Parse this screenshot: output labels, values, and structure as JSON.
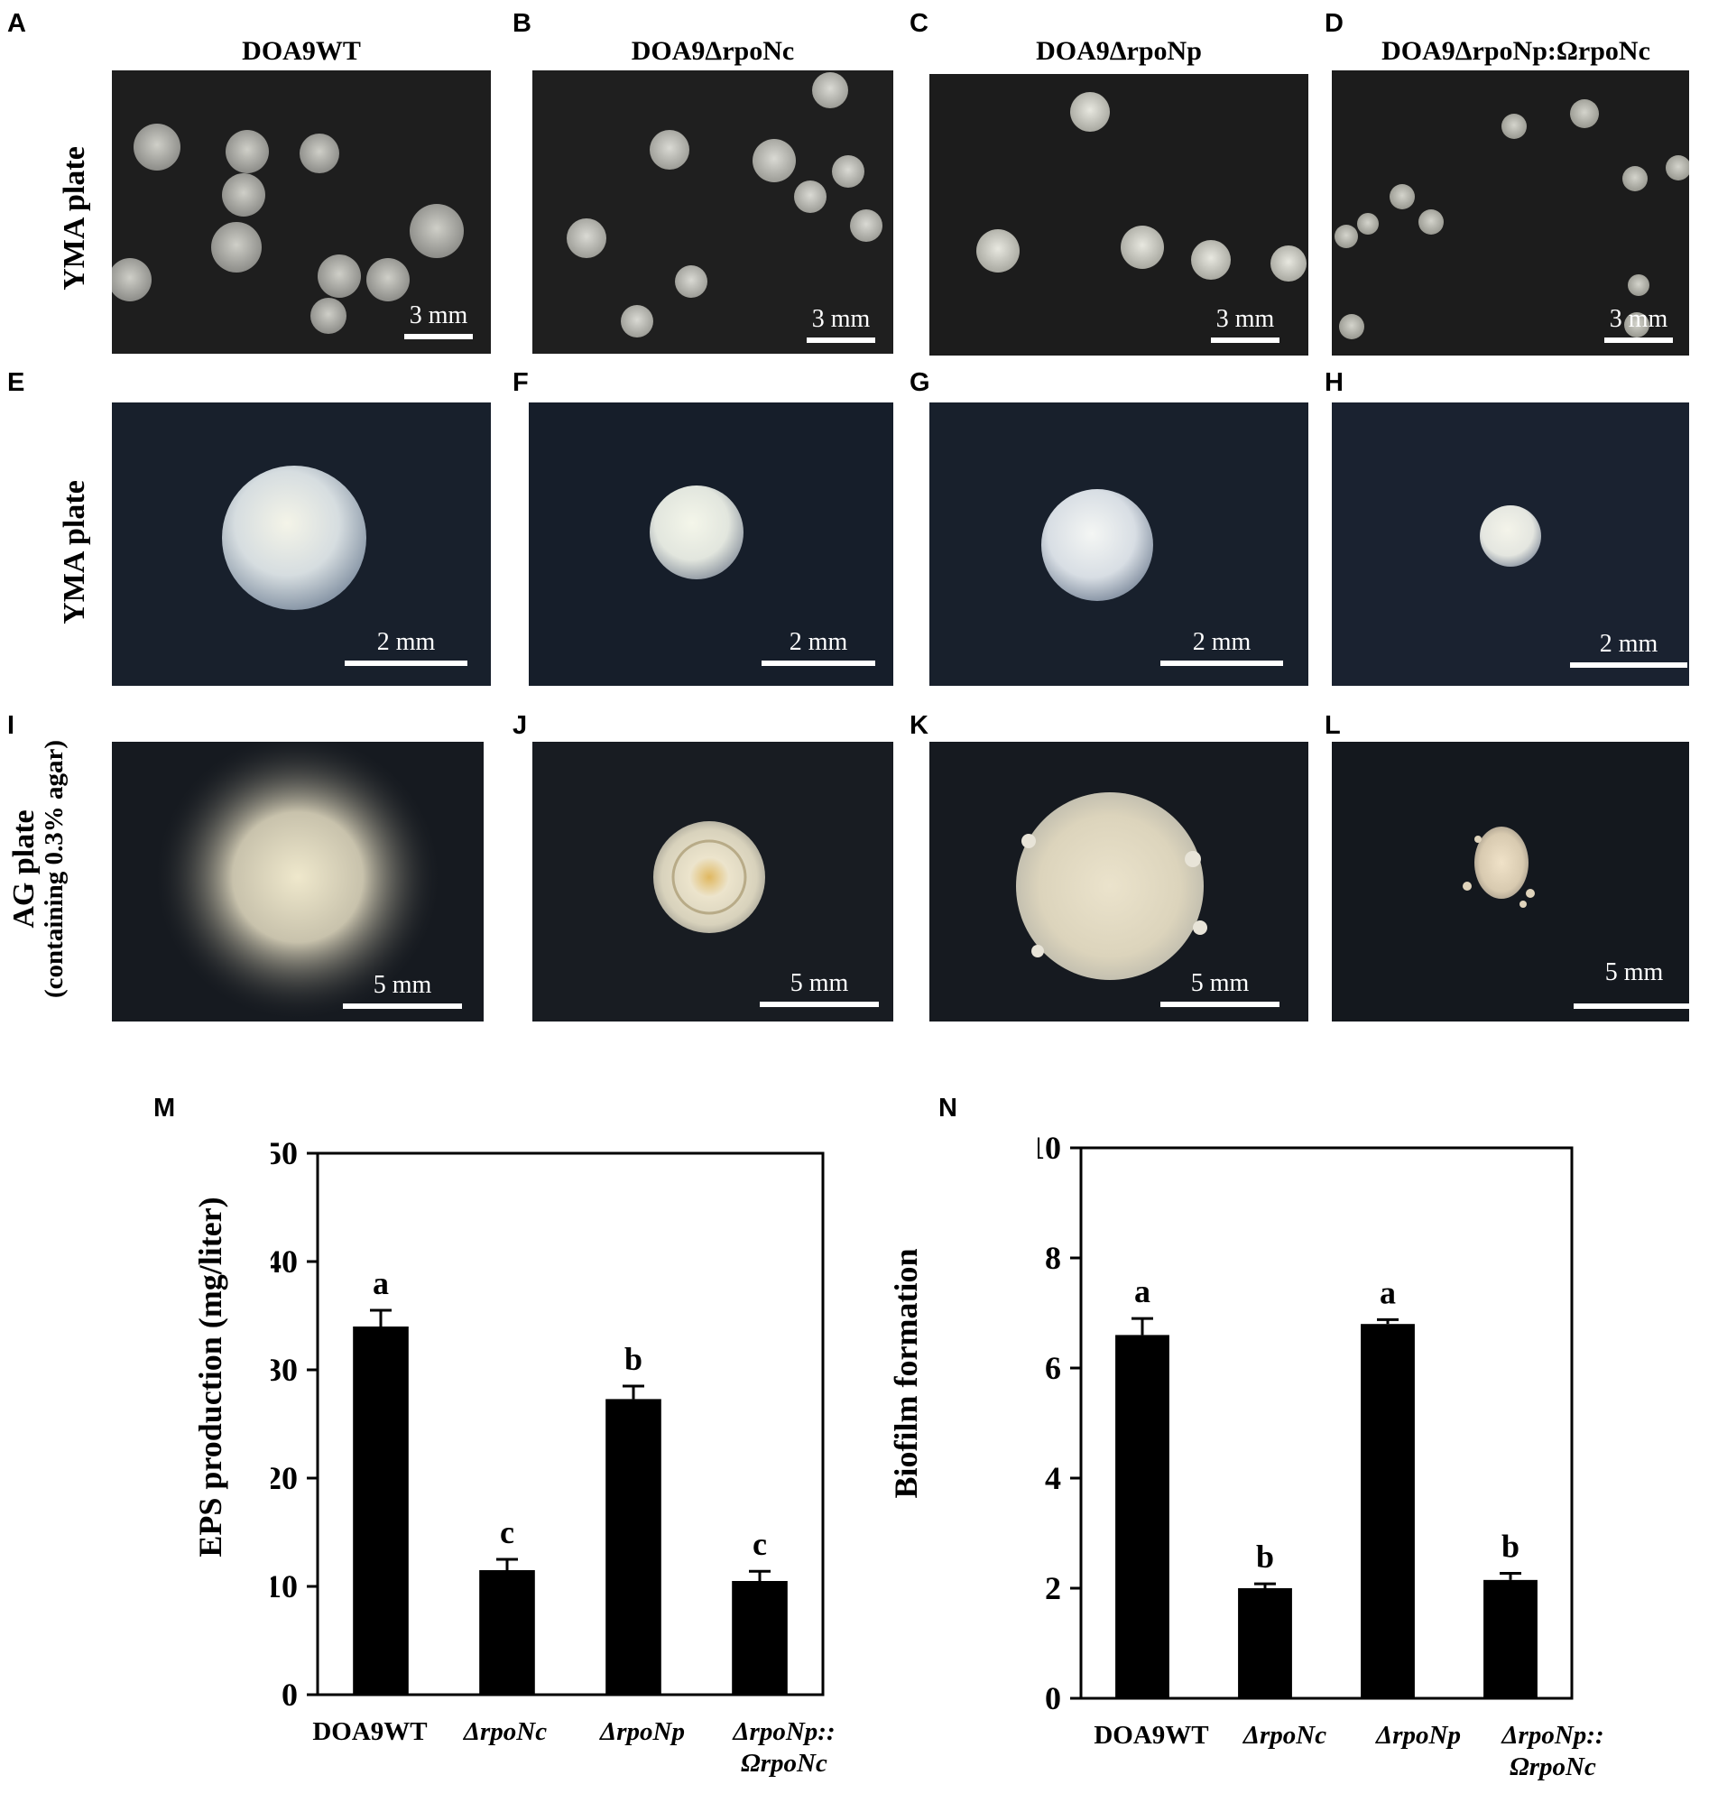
{
  "figure": {
    "panel_labels": [
      "A",
      "B",
      "C",
      "D",
      "E",
      "F",
      "G",
      "H",
      "I",
      "J",
      "K",
      "L",
      "M",
      "N"
    ],
    "strains": [
      "DOA9WT",
      "DOA9ΔrpoNc",
      "DOA9ΔrpoNp",
      "DOA9ΔrpoNp:ΩrpoNc"
    ],
    "row_labels": [
      {
        "line1": "YMA plate",
        "line2": ""
      },
      {
        "line1": "YMA plate",
        "line2": ""
      },
      {
        "line1": "AG plate",
        "line2": "(containing 0.3% agar)"
      }
    ],
    "scale_bars": [
      "3 mm",
      "3 mm",
      "3 mm",
      "3 mm",
      "2 mm",
      "2 mm",
      "2 mm",
      "2 mm",
      "5 mm",
      "5 mm",
      "5 mm",
      "5 mm"
    ],
    "colors": {
      "plate_dark_row1": "#1e1e1e",
      "plate_dark_row2": "#18202c",
      "plate_dark_row3": "#161a20",
      "colony_row1": "#c8c8c0",
      "colony_row2": "#eef0ea",
      "colony_row3": "#e6e0c8",
      "bar_fill": "#000000"
    }
  },
  "chart_data": [
    {
      "type": "bar",
      "ylabel": "EPS production (mg/liter)",
      "xlabel": "",
      "ylim": [
        0,
        50
      ],
      "yticks": [
        0,
        10,
        20,
        30,
        40,
        50
      ],
      "categories": [
        {
          "line1": "DOA9WT",
          "line2": ""
        },
        {
          "line1": "ΔrpoNc",
          "line2": ""
        },
        {
          "line1": "ΔrpoNp",
          "line2": ""
        },
        {
          "line1": "ΔrpoNp::",
          "line2": "ΩrpoNc"
        }
      ],
      "values": [
        34,
        11.5,
        27.3,
        10.5
      ],
      "errors": [
        1.5,
        1.0,
        1.2,
        0.9
      ],
      "significance_letters": [
        "a",
        "c",
        "b",
        "c"
      ]
    },
    {
      "type": "bar",
      "ylabel": "Biofilm formation",
      "xlabel": "",
      "ylim": [
        0,
        10
      ],
      "yticks": [
        0,
        2,
        4,
        6,
        8,
        10
      ],
      "categories": [
        {
          "line1": "DOA9WT",
          "line2": ""
        },
        {
          "line1": "ΔrpoNc",
          "line2": ""
        },
        {
          "line1": "ΔrpoNp",
          "line2": ""
        },
        {
          "line1": "ΔrpoNp::",
          "line2": "ΩrpoNc"
        }
      ],
      "values": [
        6.6,
        2.0,
        6.8,
        2.15
      ],
      "errors": [
        0.3,
        0.08,
        0.08,
        0.12
      ],
      "significance_letters": [
        "a",
        "b",
        "a",
        "b"
      ]
    }
  ]
}
